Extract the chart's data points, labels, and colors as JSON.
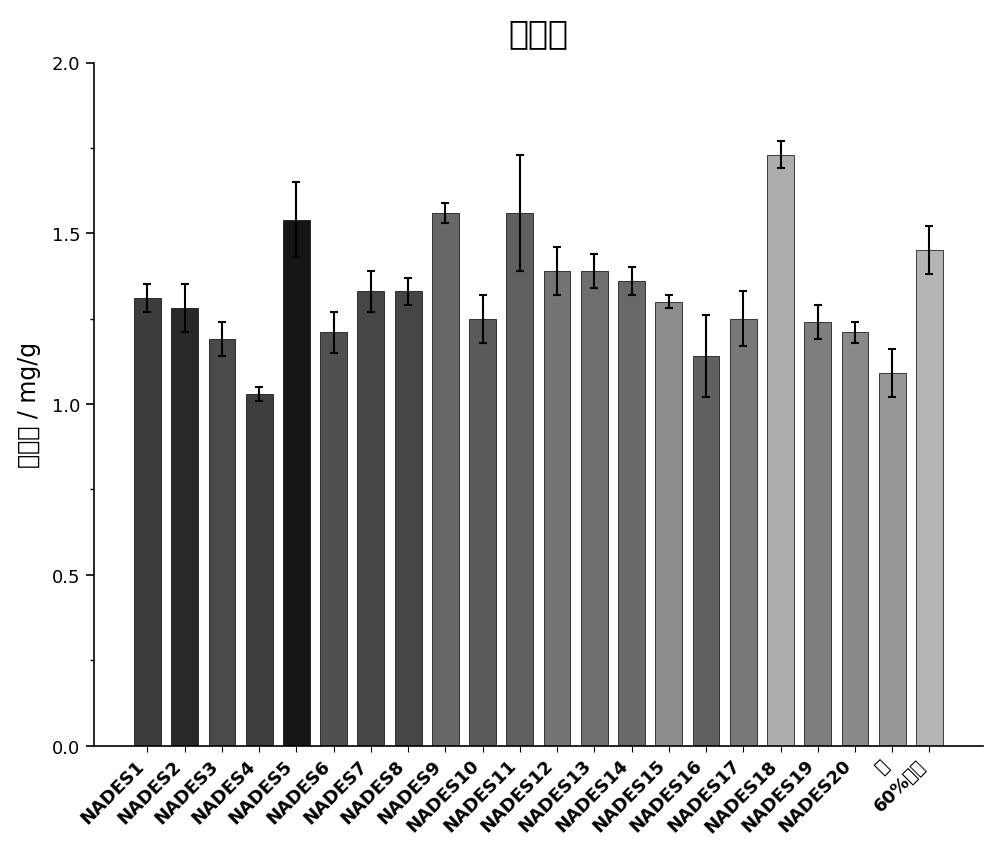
{
  "categories": [
    "NADES1",
    "NADES2",
    "NADES3",
    "NADES4",
    "NADES5",
    "NADES6",
    "NADES7",
    "NADES8",
    "NADES9",
    "NADES10",
    "NADES11",
    "NADES12",
    "NADES13",
    "NADES14",
    "NADES15",
    "NADES16",
    "NADES17",
    "NADES18",
    "NADES19",
    "NADES20",
    "水",
    "60%乙醇"
  ],
  "values": [
    1.31,
    1.28,
    1.19,
    1.03,
    1.54,
    1.21,
    1.33,
    1.33,
    1.56,
    1.25,
    1.56,
    1.39,
    1.39,
    1.36,
    1.3,
    1.14,
    1.25,
    1.73,
    1.24,
    1.21,
    1.09,
    1.45
  ],
  "errors": [
    0.04,
    0.07,
    0.05,
    0.02,
    0.11,
    0.06,
    0.06,
    0.04,
    0.03,
    0.07,
    0.17,
    0.07,
    0.05,
    0.04,
    0.02,
    0.12,
    0.08,
    0.04,
    0.05,
    0.03,
    0.07,
    0.07
  ],
  "colors": [
    "#3d3d3d",
    "#282828",
    "#4a4a4a",
    "#3e3e3e",
    "#151515",
    "#505050",
    "#464646",
    "#464646",
    "#676767",
    "#5a5a5a",
    "#606060",
    "#747474",
    "#6e6e6e",
    "#686868",
    "#8c8c8c",
    "#606060",
    "#787878",
    "#adadad",
    "#7e7e7e",
    "#898989",
    "#979797",
    "#b5b5b5"
  ],
  "title": "牛荆苷",
  "ylabel": "提取率 / mg/g",
  "ylim": [
    0.0,
    2.0
  ],
  "yticks": [
    0.0,
    0.5,
    1.0,
    1.5,
    2.0
  ],
  "title_fontsize": 24,
  "label_fontsize": 17,
  "tick_fontsize": 13,
  "background_color": "#ffffff",
  "edgecolor": "#000000",
  "bar_width": 0.72
}
